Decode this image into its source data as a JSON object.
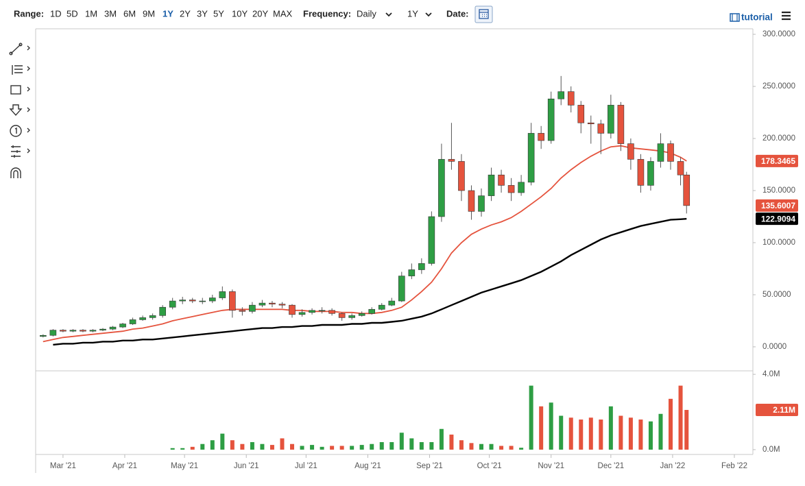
{
  "toolbar": {
    "range_label": "Range:",
    "ranges": [
      "1D",
      "5D",
      "1M",
      "3M",
      "6M",
      "9M",
      "1Y",
      "2Y",
      "3Y",
      "5Y",
      "10Y",
      "20Y",
      "MAX"
    ],
    "frequency_label": "Frequency:",
    "frequency": "Daily",
    "period": "1Y",
    "date_label": "Date:",
    "tutorial": "tutorial"
  },
  "chart_data": {
    "type": "candlestick",
    "x": [
      -10,
      -5,
      0,
      5,
      10,
      15,
      20,
      25,
      30,
      35,
      40,
      45,
      50,
      55,
      60,
      65,
      70,
      75,
      80,
      85,
      90,
      95,
      100,
      105,
      110,
      115,
      120,
      125,
      130,
      135,
      140,
      145,
      150,
      155,
      160,
      165,
      170,
      175,
      180,
      185,
      190,
      195,
      200,
      205,
      210,
      215,
      220,
      225,
      230,
      235,
      240,
      245,
      250,
      255,
      260,
      265,
      270,
      275,
      280,
      285,
      290,
      295,
      300,
      305,
      310,
      313
    ],
    "open": [
      10,
      11,
      16,
      15,
      16,
      15,
      16,
      17,
      19,
      22,
      26,
      28,
      30,
      38,
      44,
      45,
      44,
      44,
      47,
      53,
      35,
      34,
      40,
      42,
      41,
      40,
      31,
      33,
      35,
      35,
      32,
      28,
      30,
      32,
      36,
      40,
      44,
      68,
      74,
      80,
      125,
      180,
      178,
      150,
      130,
      145,
      165,
      155,
      148,
      158,
      205,
      198,
      238,
      245,
      232,
      215,
      214,
      205,
      232,
      195,
      180,
      155,
      178,
      195,
      178,
      165
    ],
    "high": [
      12,
      17,
      17,
      17,
      17,
      17,
      18,
      20,
      23,
      28,
      30,
      32,
      40,
      47,
      48,
      47,
      47,
      50,
      58,
      55,
      38,
      43,
      45,
      44,
      43,
      41,
      36,
      37,
      38,
      37,
      33,
      32,
      34,
      38,
      42,
      47,
      72,
      80,
      85,
      130,
      195,
      215,
      185,
      155,
      152,
      172,
      170,
      162,
      165,
      215,
      212,
      245,
      260,
      250,
      236,
      222,
      218,
      242,
      235,
      200,
      185,
      182,
      205,
      198,
      182,
      168
    ],
    "low": [
      9,
      10,
      14,
      14,
      14,
      14,
      15,
      16,
      18,
      21,
      25,
      26,
      28,
      36,
      41,
      42,
      41,
      42,
      45,
      28,
      30,
      32,
      38,
      38,
      37,
      28,
      29,
      31,
      32,
      30,
      25,
      26,
      29,
      31,
      35,
      39,
      43,
      65,
      70,
      78,
      120,
      170,
      140,
      122,
      125,
      140,
      148,
      140,
      145,
      155,
      190,
      195,
      232,
      225,
      205,
      195,
      185,
      200,
      188,
      170,
      148,
      150,
      172,
      170,
      155,
      128
    ],
    "close": [
      11,
      16,
      15,
      16,
      15,
      16,
      17,
      19,
      22,
      26,
      28,
      30,
      38,
      44,
      45,
      44,
      44,
      47,
      53,
      35,
      34,
      40,
      42,
      41,
      40,
      31,
      33,
      35,
      35,
      32,
      28,
      30,
      32,
      36,
      40,
      44,
      68,
      74,
      80,
      125,
      180,
      178,
      150,
      130,
      145,
      165,
      155,
      148,
      158,
      205,
      198,
      238,
      245,
      232,
      215,
      214,
      205,
      232,
      195,
      180,
      155,
      178,
      195,
      178,
      165,
      135.6007
    ],
    "up_color": "#2e9e44",
    "down_color": "#e5533d",
    "overlays": [
      {
        "color": "#e5533d",
        "values": [
          5,
          7,
          9,
          10,
          11,
          12,
          13,
          14,
          15,
          17,
          18,
          20,
          22,
          25,
          27,
          29,
          31,
          33,
          35,
          36,
          36,
          36,
          36,
          36,
          36,
          35,
          35,
          34,
          34,
          34,
          33,
          33,
          32,
          32,
          33,
          35,
          38,
          45,
          53,
          62,
          75,
          90,
          100,
          108,
          113,
          117,
          120,
          124,
          130,
          137,
          144,
          152,
          162,
          170,
          177,
          183,
          188,
          192,
          193,
          191,
          190,
          189,
          188,
          186,
          182,
          178.3465
        ]
      },
      {
        "color": "#000000",
        "values": [
          null,
          2,
          3,
          3,
          4,
          4,
          5,
          5,
          6,
          6,
          7,
          7,
          8,
          9,
          10,
          11,
          12,
          13,
          14,
          15,
          16,
          17,
          18,
          18,
          19,
          19,
          20,
          20,
          21,
          21,
          21,
          22,
          22,
          23,
          23,
          24,
          25,
          27,
          29,
          32,
          36,
          40,
          44,
          48,
          52,
          55,
          58,
          61,
          64,
          68,
          72,
          77,
          82,
          88,
          93,
          98,
          103,
          107,
          110,
          113,
          116,
          118,
          120,
          122,
          122.5,
          122.9094
        ]
      }
    ],
    "xlim": [
      -12.7,
      346.3
    ],
    "xticks": [
      {
        "value": 0,
        "label": "Mar '21"
      },
      {
        "value": 31,
        "label": "Apr '21"
      },
      {
        "value": 61,
        "label": "May '21"
      },
      {
        "value": 92,
        "label": "Jun '21"
      },
      {
        "value": 122,
        "label": "Jul '21"
      },
      {
        "value": 153,
        "label": "Aug '21"
      },
      {
        "value": 184,
        "label": "Sep '21"
      },
      {
        "value": 214,
        "label": "Oct '21"
      },
      {
        "value": 245,
        "label": "Nov '21"
      },
      {
        "value": 275,
        "label": "Dec '21"
      },
      {
        "value": 306,
        "label": "Jan '22"
      },
      {
        "value": 337,
        "label": "Feb '22"
      }
    ],
    "ylim": [
      -22.4,
      305.3
    ],
    "yticks": [
      {
        "value": 0,
        "label": "0.0000"
      },
      {
        "value": 50,
        "label": "50.0000"
      },
      {
        "value": 100,
        "label": "100.0000"
      },
      {
        "value": 150,
        "label": "150.0000"
      },
      {
        "value": 200,
        "label": "200.0000"
      },
      {
        "value": 250,
        "label": "250.0000"
      },
      {
        "value": 300,
        "label": "300.0000"
      }
    ],
    "volume": {
      "values": [
        null,
        null,
        null,
        null,
        null,
        null,
        null,
        null,
        null,
        null,
        null,
        null,
        null,
        0.08,
        0.08,
        0.15,
        0.3,
        0.5,
        0.85,
        0.5,
        0.3,
        0.4,
        0.3,
        0.25,
        0.6,
        0.3,
        0.2,
        0.25,
        0.15,
        0.2,
        0.2,
        0.2,
        0.25,
        0.3,
        0.4,
        0.4,
        0.9,
        0.6,
        0.4,
        0.4,
        1.1,
        0.8,
        0.5,
        0.35,
        0.3,
        0.3,
        0.2,
        0.2,
        0.1,
        3.4,
        2.3,
        2.5,
        1.8,
        1.7,
        1.6,
        1.7,
        1.6,
        2.3,
        1.8,
        1.7,
        1.6,
        1.5,
        1.9,
        2.7,
        3.4,
        2.11
      ],
      "value_labels": [
        null,
        null,
        null,
        null,
        null,
        null,
        null,
        null,
        null,
        null,
        null,
        null,
        null,
        null,
        null,
        null,
        null,
        null,
        null,
        null,
        null,
        null,
        null,
        null,
        null,
        null,
        null,
        null,
        null,
        null,
        null,
        null,
        null,
        null,
        null,
        null,
        null,
        null,
        null,
        null,
        null,
        null,
        null,
        null,
        null,
        null,
        null,
        null,
        null,
        null,
        null,
        null,
        null,
        null,
        null,
        null,
        null,
        null,
        null,
        null,
        null,
        null,
        null,
        null,
        null,
        "2.11M"
      ],
      "ylim": [
        -0.22,
        4.15
      ],
      "yticks": [
        {
          "value": 0,
          "label": "0.0M"
        },
        {
          "value": 4,
          "label": "4.0M"
        }
      ]
    }
  }
}
